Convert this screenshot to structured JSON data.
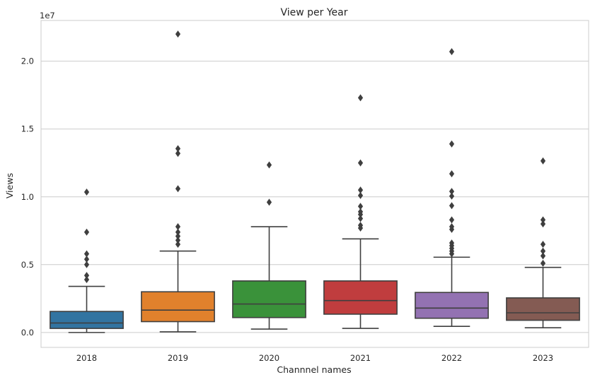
{
  "chart_data": {
    "type": "boxplot",
    "title": "View per Year",
    "xlabel": "Channnel names",
    "ylabel": "Views",
    "y_offset_text": "1e7",
    "ylim": [
      -0.11,
      2.3
    ],
    "y_unit_multiplier": 10000000,
    "yticks": [
      0.0,
      0.5,
      1.0,
      1.5,
      2.0
    ],
    "ytick_labels": [
      "0.0",
      "0.5",
      "1.0",
      "1.5",
      "2.0"
    ],
    "grid": "horizontal",
    "categories": [
      "2018",
      "2019",
      "2020",
      "2021",
      "2022",
      "2023"
    ],
    "boxes": [
      {
        "label": "2018",
        "color": "#3274a1",
        "whisker_low": 0.0,
        "q1": 0.03,
        "median": 0.07,
        "q3": 0.155,
        "whisker_high": 0.34,
        "outliers": [
          0.39,
          0.42,
          0.5,
          0.54,
          0.58,
          0.74,
          1.035
        ]
      },
      {
        "label": "2019",
        "color": "#e1812c",
        "whisker_low": 0.005,
        "q1": 0.08,
        "median": 0.165,
        "q3": 0.3,
        "whisker_high": 0.6,
        "outliers": [
          0.65,
          0.68,
          0.71,
          0.74,
          0.78,
          1.06,
          1.32,
          1.355,
          2.2
        ]
      },
      {
        "label": "2020",
        "color": "#3a923a",
        "whisker_low": 0.025,
        "q1": 0.11,
        "median": 0.21,
        "q3": 0.38,
        "whisker_high": 0.78,
        "outliers": [
          0.96,
          1.235
        ]
      },
      {
        "label": "2021",
        "color": "#c03d3e",
        "whisker_low": 0.03,
        "q1": 0.135,
        "median": 0.235,
        "q3": 0.38,
        "whisker_high": 0.69,
        "outliers": [
          0.77,
          0.79,
          0.84,
          0.87,
          0.89,
          0.93,
          1.01,
          1.05,
          1.25,
          1.73
        ]
      },
      {
        "label": "2022",
        "color": "#9372b2",
        "whisker_low": 0.045,
        "q1": 0.105,
        "median": 0.18,
        "q3": 0.295,
        "whisker_high": 0.555,
        "outliers": [
          0.58,
          0.6,
          0.62,
          0.64,
          0.66,
          0.76,
          0.78,
          0.83,
          0.935,
          1.005,
          1.04,
          1.17,
          1.39,
          2.07
        ]
      },
      {
        "label": "2023",
        "color": "#845b53",
        "whisker_low": 0.035,
        "q1": 0.09,
        "median": 0.145,
        "q3": 0.255,
        "whisker_high": 0.48,
        "outliers": [
          0.51,
          0.565,
          0.6,
          0.65,
          0.8,
          0.83,
          1.265
        ]
      }
    ]
  }
}
